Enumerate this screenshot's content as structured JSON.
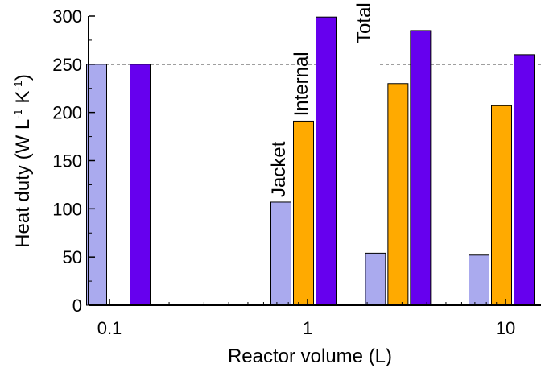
{
  "chart_data": {
    "type": "bar",
    "xlabel": "Reactor volume (L)",
    "ylabel": "Heat duty (W L-1 K-1)",
    "ylabel_parts": {
      "main": "Heat duty (W L",
      "exp1": "-1",
      "mid": " K",
      "exp2": "-1",
      "end": ")"
    },
    "x_scale": "log",
    "ylim": [
      0,
      300
    ],
    "yticks": [
      0,
      50,
      100,
      150,
      200,
      250,
      300
    ],
    "xticks": [
      {
        "value": 0.1,
        "label": "0.1"
      },
      {
        "value": 1,
        "label": "1"
      },
      {
        "value": 10,
        "label": "10"
      }
    ],
    "reference_line": {
      "y": 250,
      "style": "dashed"
    },
    "series": [
      {
        "name": "Jacket",
        "color": "#aaaaee",
        "points": [
          {
            "x": 0.1,
            "value": 250
          },
          {
            "x": 1,
            "value": 107
          },
          {
            "x": 3,
            "value": 54
          },
          {
            "x": 10,
            "value": 52
          }
        ]
      },
      {
        "name": "Internal",
        "color": "#ffaa00",
        "points": [
          {
            "x": 1,
            "value": 191
          },
          {
            "x": 3,
            "value": 230
          },
          {
            "x": 10,
            "value": 207
          }
        ]
      },
      {
        "name": "Total",
        "color": "#6600ee",
        "points": [
          {
            "x": 0.1,
            "value": 250
          },
          {
            "x": 1,
            "value": 299
          },
          {
            "x": 3,
            "value": 285
          },
          {
            "x": 10,
            "value": 260
          }
        ]
      }
    ]
  }
}
